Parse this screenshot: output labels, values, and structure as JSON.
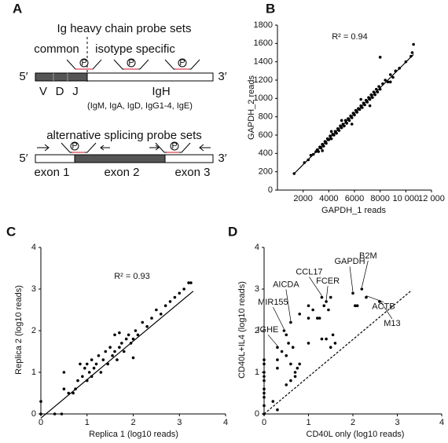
{
  "panel_labels": [
    "A",
    "B",
    "C",
    "D"
  ],
  "diagram": {
    "title_top": "Ig heavy chain probe sets",
    "common": "common",
    "isotype": "isotype specific",
    "five1": "5′",
    "three1": "3′",
    "v": "V",
    "d": "D",
    "j": "J",
    "igh": "IgH",
    "isotypes": "(IgM, IgA, IgD, IgG1-4, IgE)",
    "probe_mark": "P",
    "title_bottom": "alternative splicing probe sets",
    "five2": "5′",
    "three2": "3′",
    "exon1": "exon 1",
    "exon2": "exon 2",
    "exon3": "exon 3"
  },
  "chart_data": [
    {
      "type": "scatter",
      "x_label": "GAPDH_1 reads",
      "y_label": "GAPDH_2 reads",
      "annotation": "R² = 0.94",
      "color": "#000000",
      "xlim": [
        0,
        12000
      ],
      "ylim": [
        0,
        1800
      ],
      "xticks": [
        2000,
        4000,
        6000,
        8000,
        {
          "value": 10000,
          "label": "10 000"
        },
        {
          "value": 12000,
          "label": "12 000"
        }
      ],
      "yticks": [
        0,
        200,
        400,
        600,
        800,
        1000,
        1200,
        1400,
        1600,
        1800
      ],
      "x": [
        1300,
        2100,
        2400,
        2600,
        2800,
        3000,
        3100,
        3200,
        3300,
        3400,
        3500,
        3600,
        3700,
        3800,
        3900,
        4000,
        4100,
        4200,
        4300,
        4400,
        4500,
        4600,
        4700,
        4800,
        4900,
        5000,
        5100,
        5200,
        5300,
        5400,
        5500,
        5600,
        5700,
        5800,
        5900,
        6000,
        6100,
        6200,
        6300,
        6400,
        6500,
        6600,
        6700,
        6800,
        6900,
        7000,
        7100,
        7200,
        7300,
        7400,
        7500,
        7600,
        7700,
        7800,
        7900,
        8000,
        8200,
        8400,
        8600,
        8800,
        9000,
        9200,
        9500,
        10000,
        10400,
        10600,
        10500,
        3500,
        4200,
        5000,
        5800,
        6500,
        7200,
        8000,
        8800
      ],
      "values": [
        180,
        300,
        330,
        380,
        390,
        420,
        440,
        420,
        470,
        460,
        500,
        480,
        530,
        510,
        560,
        550,
        590,
        560,
        610,
        600,
        640,
        620,
        670,
        650,
        700,
        680,
        720,
        700,
        760,
        730,
        780,
        760,
        810,
        790,
        840,
        820,
        870,
        850,
        890,
        880,
        920,
        900,
        950,
        930,
        980,
        960,
        1010,
        990,
        1040,
        1010,
        1070,
        1040,
        1100,
        1070,
        1130,
        1100,
        1160,
        1200,
        1180,
        1260,
        1230,
        1300,
        1330,
        1400,
        1460,
        1590,
        1500,
        430,
        640,
        760,
        720,
        990,
        920,
        1450,
        1180
      ],
      "fit": {
        "x": [
          1300,
          10600
        ],
        "y": [
          180,
          1480
        ],
        "dashed": false
      }
    },
    {
      "type": "scatter",
      "x_label": "Replica 1 (log10 reads)",
      "y_label": "Replica 2 (log10 reads)",
      "annotation": "R² = 0.93",
      "color": "#000000",
      "xlim": [
        0,
        4
      ],
      "ylim": [
        0,
        4
      ],
      "xticks": [
        0,
        1,
        2,
        3,
        4
      ],
      "yticks": [
        0,
        1,
        2,
        3,
        4
      ],
      "x": [
        0,
        0,
        0.3,
        0.45,
        0.5,
        0.5,
        0.6,
        0.7,
        0.75,
        0.8,
        0.9,
        0.95,
        1.0,
        1.0,
        1.05,
        1.1,
        1.15,
        1.2,
        1.25,
        1.3,
        1.35,
        1.4,
        1.45,
        1.5,
        1.55,
        1.6,
        1.6,
        1.65,
        1.7,
        1.75,
        1.8,
        1.85,
        1.9,
        1.95,
        2.0,
        2.05,
        2.1,
        2.2,
        2.3,
        2.4,
        2.5,
        2.6,
        2.7,
        2.8,
        2.9,
        3.0,
        3.1,
        3.2,
        3.25,
        1.7,
        2.0,
        1.1,
        0.85
      ],
      "values": [
        0,
        0.3,
        0,
        0,
        0.6,
        1.0,
        0.5,
        0.5,
        0.6,
        0.8,
        0.9,
        1.1,
        1.2,
        0.8,
        1.0,
        1.3,
        1.1,
        1.2,
        1.4,
        1.0,
        1.3,
        1.5,
        1.2,
        1.6,
        1.4,
        1.5,
        1.9,
        1.3,
        1.6,
        1.7,
        1.5,
        1.8,
        1.9,
        1.7,
        1.8,
        2.0,
        1.9,
        2.2,
        2.1,
        2.3,
        2.5,
        2.4,
        2.6,
        2.7,
        2.8,
        2.9,
        3.0,
        3.15,
        3.15,
        1.95,
        1.35,
        0.9,
        1.2
      ],
      "fit": {
        "x": [
          0,
          3.3
        ],
        "y": [
          -0.1,
          2.95
        ],
        "dashed": false
      }
    },
    {
      "type": "scatter",
      "x_label": "CD40L only (log10 reads)",
      "y_label": "CD40L+IL4 (log10 reads)",
      "color": "#000000",
      "xlim": [
        0,
        4
      ],
      "ylim": [
        0,
        4
      ],
      "xticks": [
        0,
        1,
        2,
        3,
        4
      ],
      "yticks": [
        0,
        1,
        2,
        3,
        4
      ],
      "x": [
        0,
        0,
        0,
        0,
        0,
        0,
        0,
        0,
        0,
        0,
        0.3,
        0.3,
        0.3,
        0.3,
        0.4,
        0.45,
        0.5,
        0.5,
        0.55,
        0.6,
        0.6,
        0.65,
        0.7,
        0.75,
        0.8,
        0.6,
        0.7,
        1.0,
        1.1,
        1.2,
        1.25,
        1.3,
        1.35,
        1.4,
        1.45,
        1.5,
        1.3,
        1.55,
        1.6,
        2.0,
        2.05,
        2.1,
        2.2,
        2.3,
        2.6,
        1.0,
        0.5,
        0.2,
        0.8,
        1.4,
        1.5,
        1.0
      ],
      "values": [
        0,
        0.2,
        0.4,
        0.6,
        0.8,
        1.0,
        1.2,
        1.3,
        0.5,
        0.9,
        0.1,
        1.6,
        1.3,
        1.1,
        1.5,
        2.0,
        1.9,
        1.4,
        1.7,
        2.2,
        1.2,
        1.6,
        1.0,
        1.1,
        1.2,
        0.8,
        0.9,
        2.6,
        2.5,
        2.3,
        2.3,
        2.8,
        2.6,
        2.7,
        2.5,
        2.8,
        1.8,
        1.9,
        1.7,
        2.9,
        2.6,
        2.6,
        3.0,
        2.8,
        2.7,
        1.7,
        0.7,
        0.3,
        2.4,
        1.8,
        1.6,
        2.3
      ],
      "fit": {
        "x": [
          0,
          3.3
        ],
        "y": [
          0,
          2.95
        ],
        "dashed": true
      },
      "annotations": [
        {
          "text": "IGHE",
          "x": 0.3,
          "y": 1.6
        },
        {
          "text": "MIR155",
          "x": 0.45,
          "y": 2.0
        },
        {
          "text": "AICDA",
          "x": 0.6,
          "y": 2.2
        },
        {
          "text": "CCL17",
          "x": 1.3,
          "y": 2.8
        },
        {
          "text": "FCER",
          "x": 1.4,
          "y": 2.7
        },
        {
          "text": "GAPDH",
          "x": 2.0,
          "y": 2.9
        },
        {
          "text": "B2M",
          "x": 2.2,
          "y": 3.0
        },
        {
          "text": "ACTB",
          "x": 2.3,
          "y": 2.8
        },
        {
          "text": "M13",
          "x": 2.6,
          "y": 2.7
        }
      ]
    }
  ]
}
